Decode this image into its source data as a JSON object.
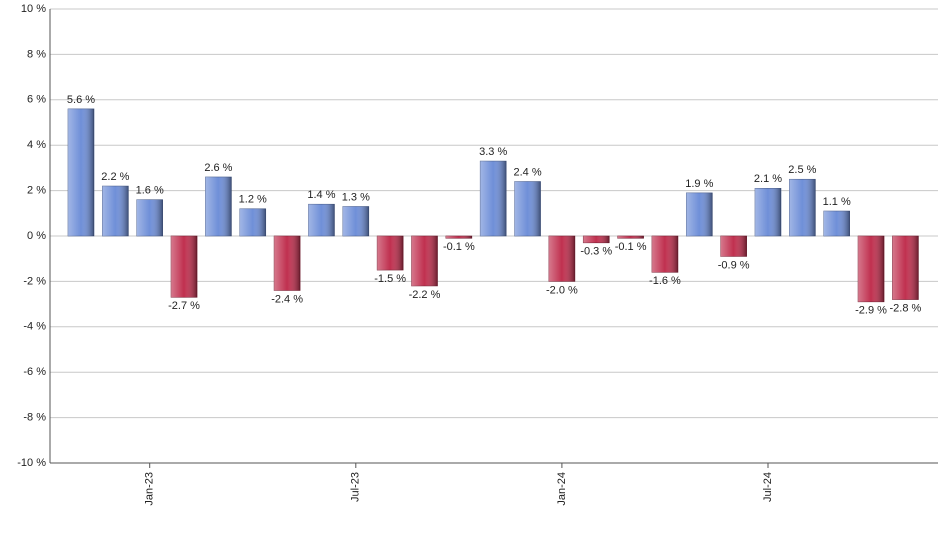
{
  "chart_data": {
    "type": "bar",
    "categories": [
      null,
      null,
      "Jan-23",
      null,
      null,
      null,
      null,
      null,
      "Jul-23",
      null,
      null,
      null,
      null,
      null,
      "Jan-24",
      null,
      null,
      null,
      null,
      null,
      "Jul-24",
      null,
      null,
      null,
      null
    ],
    "values": [
      5.6,
      2.2,
      1.6,
      -2.7,
      2.6,
      1.2,
      -2.4,
      1.4,
      1.3,
      -1.5,
      -2.2,
      -0.1,
      3.3,
      2.4,
      -2.0,
      -0.3,
      -0.1,
      -1.6,
      1.9,
      -0.9,
      2.1,
      2.5,
      1.1,
      -2.9,
      -2.8
    ],
    "value_labels": [
      "5.6 %",
      "2.2 %",
      "1.6 %",
      "-2.7 %",
      "2.6 %",
      "1.2 %",
      "-2.4 %",
      "1.4 %",
      "1.3 %",
      "-1.5 %",
      "-2.2 %",
      "-0.1 %",
      "3.3 %",
      "2.4 %",
      "-2.0 %",
      "-0.3 %",
      "-0.1 %",
      "-1.6 %",
      "1.9 %",
      "-0.9 %",
      "2.1 %",
      "2.5 %",
      "1.1 %",
      "-2.9 %",
      "-2.8 %"
    ],
    "color_positive": "#6f8fd8",
    "color_negative": "#c0304f",
    "ylim": [
      -10,
      10
    ],
    "yticks": [
      {
        "value": -10,
        "label": "-10 %"
      },
      {
        "value": -8,
        "label": "-8 %"
      },
      {
        "value": -6,
        "label": "-6 %"
      },
      {
        "value": -4,
        "label": "-4 %"
      },
      {
        "value": -2,
        "label": "-2 %"
      },
      {
        "value": 0,
        "label": "0 %"
      },
      {
        "value": 2,
        "label": "2 %"
      },
      {
        "value": 4,
        "label": "4 %"
      },
      {
        "value": 6,
        "label": "6 %"
      },
      {
        "value": 8,
        "label": "8 %"
      },
      {
        "value": 10,
        "label": "10 %"
      }
    ],
    "grid": true
  }
}
